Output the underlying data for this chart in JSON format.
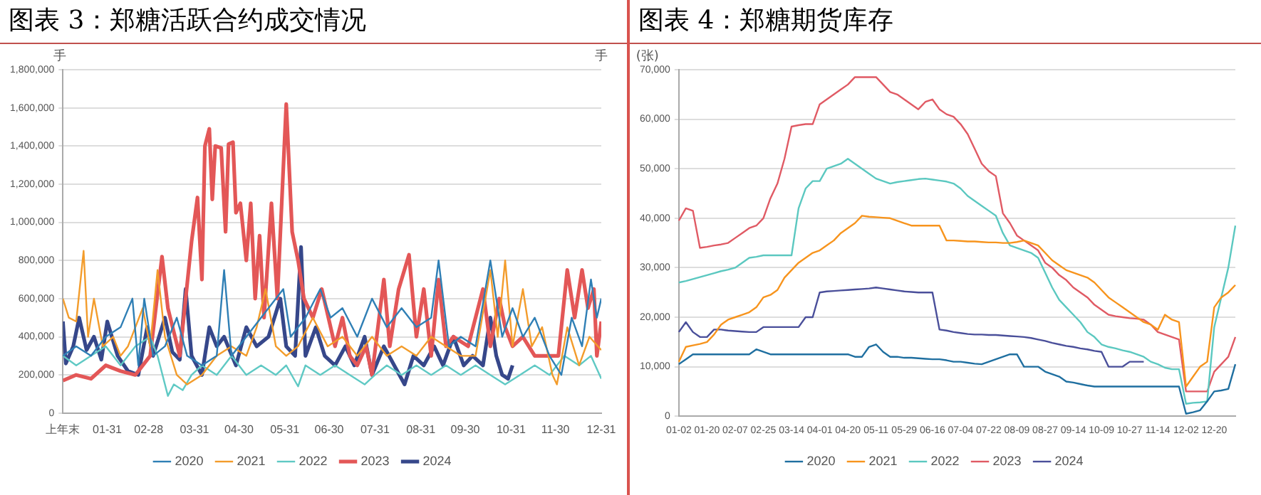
{
  "chart_data": [
    {
      "type": "line",
      "title": "图表 3：郑糖活跃合约成交情况",
      "ylabel": "手",
      "annotations": [
        "手"
      ],
      "xlim": [
        "--01-01",
        "--12-31"
      ],
      "xticks": [
        {
          "value": "--01-01",
          "label": "上年末"
        },
        {
          "value": "--01-31",
          "label": "01-31"
        },
        {
          "value": "--02-28",
          "label": "02-28"
        },
        {
          "value": "--03-31",
          "label": "03-31"
        },
        {
          "value": "--04-30",
          "label": "04-30"
        },
        {
          "value": "--05-31",
          "label": "05-31"
        },
        {
          "value": "--06-30",
          "label": "06-30"
        },
        {
          "value": "--07-31",
          "label": "07-31"
        },
        {
          "value": "--08-31",
          "label": "08-31"
        },
        {
          "value": "--09-30",
          "label": "09-30"
        },
        {
          "value": "--10-31",
          "label": "10-31"
        },
        {
          "value": "--11-30",
          "label": "11-30"
        },
        {
          "value": "--12-31",
          "label": "12-31"
        }
      ],
      "ylim": [
        0,
        1800000
      ],
      "yticks": [
        {
          "value": 0,
          "label": "0"
        },
        {
          "value": 200000,
          "label": "200,000"
        },
        {
          "value": 400000,
          "label": "400,000"
        },
        {
          "value": 600000,
          "label": "600,000"
        },
        {
          "value": 800000,
          "label": "800,000"
        },
        {
          "value": 1000000,
          "label": "1,000,000"
        },
        {
          "value": 1200000,
          "label": "1,200,000"
        },
        {
          "value": 1400000,
          "label": "1,400,000"
        },
        {
          "value": 1600000,
          "label": "1,600,000"
        },
        {
          "value": 1800000,
          "label": "1,800,000"
        }
      ],
      "grid": "y",
      "legend": "bottom",
      "marker": "none",
      "line_style": "solid",
      "series": [
        {
          "name": "2020",
          "color": "#2f7fb5",
          "x": [
            "--01-01",
            "--01-10",
            "--01-20",
            "--01-30",
            "--02-09",
            "--02-17",
            "--02-21",
            "--02-25",
            "--03-03",
            "--03-11",
            "--03-19",
            "--03-26",
            "--04-05",
            "--04-15",
            "--04-20",
            "--04-25",
            "--05-05",
            "--05-20",
            "--05-30",
            "--06-04",
            "--06-14",
            "--06-24",
            "--07-01",
            "--07-09",
            "--07-19",
            "--07-29",
            "--08-08",
            "--08-18",
            "--08-28",
            "--09-07",
            "--09-12",
            "--09-19",
            "--09-27",
            "--10-07",
            "--10-17",
            "--10-25",
            "--11-01",
            "--11-08",
            "--11-16",
            "--11-26",
            "--12-04",
            "--12-11",
            "--12-18",
            "--12-24",
            "--12-28",
            "--12-31"
          ],
          "values": [
            300000,
            350000,
            300000,
            400000,
            450000,
            600000,
            250000,
            600000,
            300000,
            350000,
            500000,
            300000,
            250000,
            300000,
            750000,
            300000,
            400000,
            550000,
            650000,
            400000,
            500000,
            650000,
            500000,
            550000,
            400000,
            600000,
            450000,
            550000,
            450000,
            500000,
            800000,
            350000,
            400000,
            350000,
            800000,
            400000,
            550000,
            400000,
            500000,
            300000,
            200000,
            500000,
            350000,
            700000,
            500000,
            600000
          ]
        },
        {
          "name": "2021",
          "color": "#f39c2b",
          "x": [
            "--01-01",
            "--01-05",
            "--01-10",
            "--01-15",
            "--01-18",
            "--01-22",
            "--01-28",
            "--02-04",
            "--02-09",
            "--02-14",
            "--02-24",
            "--03-01",
            "--03-06",
            "--03-11",
            "--03-19",
            "--03-26",
            "--04-05",
            "--04-15",
            "--04-25",
            "--05-05",
            "--05-12",
            "--05-18",
            "--05-25",
            "--06-01",
            "--06-09",
            "--06-19",
            "--06-29",
            "--07-09",
            "--07-19",
            "--07-29",
            "--08-08",
            "--08-18",
            "--08-28",
            "--09-07",
            "--09-17",
            "--09-27",
            "--10-07",
            "--10-17",
            "--10-22",
            "--10-27",
            "--11-01",
            "--11-08",
            "--11-14",
            "--11-21",
            "--11-28",
            "--12-01",
            "--12-08",
            "--12-16",
            "--12-23",
            "--12-31"
          ],
          "values": [
            600000,
            500000,
            480000,
            850000,
            400000,
            600000,
            350000,
            400000,
            300000,
            350000,
            550000,
            350000,
            750000,
            400000,
            200000,
            150000,
            200000,
            300000,
            350000,
            300000,
            450000,
            650000,
            350000,
            300000,
            350000,
            500000,
            350000,
            400000,
            300000,
            400000,
            300000,
            350000,
            300000,
            400000,
            350000,
            300000,
            300000,
            750000,
            400000,
            800000,
            350000,
            650000,
            350000,
            450000,
            200000,
            150000,
            450000,
            250000,
            400000,
            330000
          ]
        },
        {
          "name": "2022",
          "color": "#5fc9c4",
          "x": [
            "--01-01",
            "--01-10",
            "--01-20",
            "--01-30",
            "--02-09",
            "--02-19",
            "--03-01",
            "--03-06",
            "--03-13",
            "--03-17",
            "--03-23",
            "--03-29",
            "--04-05",
            "--04-15",
            "--04-25",
            "--05-05",
            "--05-15",
            "--05-25",
            "--06-01",
            "--06-09",
            "--06-14",
            "--06-24",
            "--07-04",
            "--07-14",
            "--07-24",
            "--07-31",
            "--08-08",
            "--08-18",
            "--08-28",
            "--09-07",
            "--09-17",
            "--09-27",
            "--10-07",
            "--10-17",
            "--10-27",
            "--11-06",
            "--11-16",
            "--11-26",
            "--12-06",
            "--12-16",
            "--12-24",
            "--12-31"
          ],
          "values": [
            300000,
            250000,
            300000,
            350000,
            250000,
            350000,
            400000,
            300000,
            90000,
            150000,
            120000,
            200000,
            250000,
            200000,
            300000,
            200000,
            250000,
            200000,
            250000,
            140000,
            250000,
            200000,
            250000,
            200000,
            150000,
            200000,
            250000,
            200000,
            250000,
            200000,
            250000,
            200000,
            250000,
            200000,
            150000,
            200000,
            250000,
            200000,
            300000,
            250000,
            300000,
            180000
          ]
        },
        {
          "name": "2023",
          "color": "#e35757",
          "x": [
            "--01-01",
            "--01-10",
            "--01-20",
            "--01-30",
            "--02-09",
            "--02-19",
            "--03-01",
            "--03-09",
            "--03-13",
            "--03-21",
            "--03-29",
            "--04-02",
            "--04-05",
            "--04-07",
            "--04-10",
            "--04-12",
            "--04-14",
            "--04-18",
            "--04-21",
            "--04-23",
            "--04-26",
            "--04-28",
            "--05-01",
            "--05-05",
            "--05-08",
            "--05-11",
            "--05-14",
            "--05-17",
            "--05-22",
            "--05-26",
            "--06-01",
            "--06-05",
            "--06-09",
            "--06-13",
            "--06-19",
            "--06-25",
            "--07-04",
            "--07-09",
            "--07-14",
            "--07-19",
            "--07-25",
            "--07-29",
            "--08-06",
            "--08-10",
            "--08-16",
            "--08-23",
            "--08-28",
            "--09-02",
            "--09-07",
            "--09-12",
            "--09-17",
            "--09-22",
            "--10-02",
            "--10-12",
            "--10-17",
            "--10-23",
            "--10-27",
            "--11-01",
            "--11-08",
            "--11-16",
            "--11-26",
            "--12-02",
            "--12-08",
            "--12-13",
            "--12-18",
            "--12-22",
            "--12-26",
            "--12-28",
            "--12-31"
          ],
          "values": [
            170000,
            200000,
            180000,
            250000,
            220000,
            200000,
            300000,
            820000,
            550000,
            300000,
            900000,
            1130000,
            700000,
            1400000,
            1490000,
            1120000,
            1400000,
            1390000,
            950000,
            1410000,
            1420000,
            1050000,
            1100000,
            800000,
            1100000,
            600000,
            930000,
            500000,
            1100000,
            600000,
            1620000,
            950000,
            800000,
            600000,
            500000,
            650000,
            350000,
            500000,
            300000,
            250000,
            350000,
            200000,
            700000,
            350000,
            650000,
            830000,
            400000,
            650000,
            300000,
            700000,
            350000,
            400000,
            350000,
            650000,
            350000,
            600000,
            450000,
            350000,
            400000,
            300000,
            300000,
            300000,
            750000,
            500000,
            750000,
            550000,
            650000,
            300000,
            480000
          ]
        },
        {
          "name": "2024",
          "color": "#36478a",
          "x": [
            "--01-01",
            "--01-03",
            "--01-08",
            "--01-12",
            "--01-17",
            "--01-22",
            "--01-27",
            "--01-31",
            "--02-07",
            "--02-14",
            "--02-21",
            "--02-27",
            "--03-03",
            "--03-11",
            "--03-16",
            "--03-21",
            "--03-25",
            "--03-29",
            "--04-05",
            "--04-10",
            "--04-15",
            "--04-20",
            "--04-28",
            "--05-05",
            "--05-12",
            "--05-20",
            "--05-28",
            "--06-01",
            "--06-07",
            "--06-11",
            "--06-14",
            "--06-21",
            "--06-27",
            "--07-04",
            "--07-11",
            "--07-17",
            "--07-24",
            "--07-29",
            "--08-06",
            "--08-13",
            "--08-20",
            "--08-26",
            "--09-02",
            "--09-09",
            "--09-15",
            "--09-22",
            "--09-29",
            "--10-05",
            "--10-12",
            "--10-17",
            "--10-21",
            "--10-25",
            "--10-29",
            "--11-01"
          ],
          "values": [
            480000,
            260000,
            350000,
            500000,
            330000,
            400000,
            280000,
            480000,
            300000,
            220000,
            200000,
            450000,
            300000,
            500000,
            320000,
            280000,
            650000,
            300000,
            200000,
            450000,
            350000,
            400000,
            250000,
            450000,
            350000,
            400000,
            600000,
            350000,
            300000,
            870000,
            300000,
            450000,
            300000,
            250000,
            350000,
            250000,
            400000,
            200000,
            350000,
            250000,
            150000,
            300000,
            250000,
            350000,
            250000,
            400000,
            250000,
            300000,
            250000,
            500000,
            300000,
            200000,
            180000,
            250000
          ]
        }
      ]
    },
    {
      "type": "line",
      "title": "图表 4：郑糖期货库存",
      "ylabel": "(张)",
      "categories": [
        "01-02",
        null,
        null,
        null,
        "01-20",
        null,
        null,
        null,
        "02-07",
        null,
        null,
        null,
        "02-25",
        null,
        null,
        null,
        "03-14",
        null,
        null,
        null,
        "04-01",
        null,
        null,
        null,
        "04-20",
        null,
        null,
        null,
        "05-11",
        null,
        null,
        null,
        "05-29",
        null,
        null,
        null,
        "06-16",
        null,
        null,
        null,
        "07-04",
        null,
        null,
        null,
        "07-22",
        null,
        null,
        null,
        "08-09",
        null,
        null,
        null,
        "08-27",
        null,
        null,
        null,
        "09-14",
        null,
        null,
        null,
        "10-09",
        null,
        null,
        null,
        "10-27",
        null,
        null,
        null,
        "11-14",
        null,
        null,
        null,
        "12-02",
        null,
        null,
        null,
        "12-20",
        null,
        null,
        null
      ],
      "ylim": [
        0,
        70000
      ],
      "yticks": [
        {
          "value": 0,
          "label": "0"
        },
        {
          "value": 10000,
          "label": "10,000"
        },
        {
          "value": 20000,
          "label": "20,000"
        },
        {
          "value": 30000,
          "label": "30,000"
        },
        {
          "value": 40000,
          "label": "40,000"
        },
        {
          "value": 50000,
          "label": "50,000"
        },
        {
          "value": 60000,
          "label": "60,000"
        },
        {
          "value": 70000,
          "label": "70,000"
        }
      ],
      "grid": "y",
      "legend": "bottom",
      "marker": "none",
      "line_style": "solid",
      "series": [
        {
          "name": "2020",
          "color": "#1f6fa0",
          "values": [
            10500,
            11500,
            12500,
            12500,
            12500,
            12500,
            12500,
            12500,
            12500,
            12500,
            12500,
            13500,
            13000,
            12500,
            12500,
            12500,
            12500,
            12500,
            12500,
            12500,
            12500,
            12500,
            12500,
            12500,
            12500,
            12000,
            12000,
            14000,
            14500,
            13000,
            12000,
            12000,
            11800,
            11800,
            11700,
            11600,
            11500,
            11500,
            11300,
            11000,
            11000,
            10800,
            10600,
            10500,
            11000,
            11500,
            12000,
            12500,
            12500,
            10000,
            10000,
            10000,
            9000,
            8500,
            8000,
            7000,
            6800,
            6500,
            6200,
            6000,
            6000,
            6000,
            6000,
            6000,
            6000,
            6000,
            6000,
            6000,
            6000,
            6000,
            6000,
            6000,
            500,
            800,
            1200,
            3000,
            5000,
            5200,
            5500,
            10500
          ]
        },
        {
          "name": "2021",
          "color": "#f7941d",
          "values": [
            11000,
            14000,
            14300,
            14600,
            15000,
            16500,
            18500,
            19500,
            20000,
            20500,
            21000,
            22000,
            24000,
            24500,
            25500,
            28000,
            29500,
            31000,
            32000,
            33000,
            33500,
            34500,
            35500,
            37000,
            38000,
            39000,
            40500,
            40300,
            40200,
            40100,
            40000,
            39500,
            39000,
            38500,
            38500,
            38500,
            38500,
            38500,
            35500,
            35500,
            35400,
            35300,
            35300,
            35200,
            35100,
            35100,
            35000,
            35000,
            35200,
            35500,
            35000,
            34500,
            33000,
            31500,
            30500,
            29500,
            29000,
            28500,
            28000,
            27000,
            25500,
            24000,
            23000,
            22000,
            21000,
            20000,
            19000,
            18500,
            17500,
            20500,
            19500,
            19000,
            6000,
            8000,
            10000,
            11000,
            22000,
            24000,
            25000,
            26500
          ]
        },
        {
          "name": "2022",
          "color": "#5bc8c0",
          "values": [
            27000,
            27300,
            27700,
            28100,
            28500,
            28900,
            29300,
            29600,
            30000,
            31000,
            32000,
            32200,
            32500,
            32500,
            32500,
            32500,
            32500,
            42000,
            46000,
            47500,
            47500,
            50000,
            50500,
            51000,
            52000,
            51000,
            50000,
            49000,
            48000,
            47500,
            47000,
            47300,
            47500,
            47700,
            47900,
            48000,
            47800,
            47600,
            47400,
            47000,
            46000,
            44500,
            43500,
            42500,
            41500,
            40500,
            37000,
            34500,
            34000,
            33500,
            33000,
            32000,
            29000,
            26000,
            23500,
            22000,
            20500,
            19000,
            17000,
            16000,
            14500,
            14000,
            13700,
            13300,
            13000,
            12500,
            12000,
            11000,
            10500,
            9800,
            9500,
            9500,
            2500,
            2700,
            2800,
            3000,
            18000,
            24000,
            30000,
            38500
          ]
        },
        {
          "name": "2023",
          "color": "#e05a64",
          "values": [
            39500,
            42000,
            41500,
            34000,
            34200,
            34500,
            34700,
            35000,
            36000,
            37000,
            38000,
            38500,
            40000,
            44000,
            47000,
            52000,
            58500,
            58800,
            59000,
            59000,
            63000,
            64000,
            65000,
            66000,
            67000,
            68500,
            68500,
            68500,
            68500,
            67000,
            65500,
            65000,
            64000,
            63000,
            62000,
            63500,
            64000,
            62000,
            61000,
            60500,
            59000,
            57000,
            54000,
            51000,
            49500,
            48500,
            41000,
            39000,
            36500,
            35500,
            34500,
            33500,
            31000,
            30000,
            28500,
            27500,
            26000,
            25000,
            24000,
            22500,
            21500,
            20500,
            20200,
            20000,
            19800,
            19700,
            19500,
            18500,
            17000,
            16500,
            16000,
            15500,
            5000,
            5000,
            5000,
            5000,
            9000,
            10500,
            12000,
            16000
          ]
        },
        {
          "name": "2024",
          "color": "#4a4f9a",
          "values": [
            17000,
            19000,
            17000,
            16000,
            16000,
            17500,
            17500,
            17300,
            17200,
            17100,
            17000,
            17000,
            18000,
            18000,
            18000,
            18000,
            18000,
            18000,
            20000,
            20000,
            25000,
            25200,
            25300,
            25400,
            25500,
            25600,
            25700,
            25800,
            26000,
            25800,
            25600,
            25400,
            25200,
            25100,
            25000,
            25000,
            25000,
            17500,
            17300,
            17000,
            16800,
            16600,
            16500,
            16500,
            16400,
            16400,
            16300,
            16200,
            16100,
            16000,
            15800,
            15500,
            15200,
            14800,
            14500,
            14200,
            14000,
            13700,
            13500,
            13200,
            13000,
            10000,
            10000,
            10000,
            11000,
            11000,
            11000,
            null,
            null,
            null,
            null,
            null,
            null,
            null,
            null,
            null,
            null,
            null,
            null,
            null
          ]
        }
      ]
    }
  ]
}
